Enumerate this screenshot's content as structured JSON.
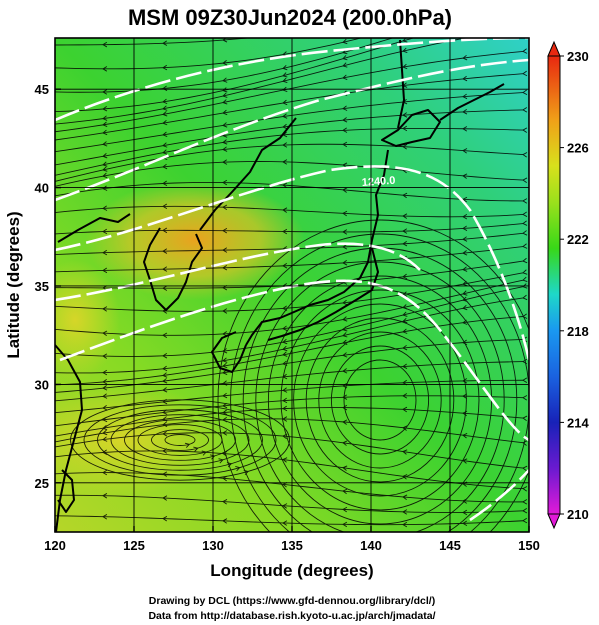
{
  "title": "MSM 09Z30Jun2024 (200.0hPa)",
  "xlabel": "Longitude (degrees)",
  "ylabel": "Latitude  (degrees)",
  "footer": {
    "line1": "Drawing by DCL (https://www.gfd-dennou.org/library/dcl/)",
    "line2": "Data from http://database.rish.kyoto-u.ac.jp/arch/jmadata/"
  },
  "map": {
    "lon_range": [
      120,
      150
    ],
    "lat_range": [
      22.5,
      47.6
    ],
    "lon_ticks": [
      120,
      125,
      130,
      135,
      140,
      145,
      150
    ],
    "lat_ticks": [
      25,
      30,
      35,
      40,
      45
    ],
    "grid": true,
    "contour_label": "1240.0",
    "colorbar": {
      "range": [
        210,
        230
      ],
      "labels": [
        210,
        214,
        218,
        222,
        226,
        230
      ],
      "colors": [
        "#e21ad8",
        "#1822b8",
        "#1a98f0",
        "#1ed8c8",
        "#38d818",
        "#c0e21c",
        "#f0a018",
        "#e82810"
      ]
    }
  }
}
